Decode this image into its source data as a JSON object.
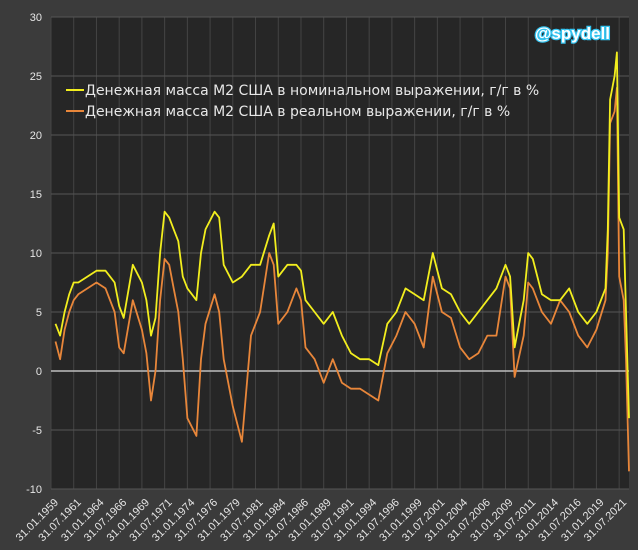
{
  "watermark": "@spydell",
  "chart_data": {
    "type": "line",
    "title": "",
    "xlabel": "",
    "ylabel": "",
    "ylim": [
      -10,
      30
    ],
    "yticks": [
      -10,
      -5,
      0,
      5,
      10,
      15,
      20,
      25,
      30
    ],
    "xlim": [
      "1959-01",
      "2022-08"
    ],
    "xtick_labels": [
      "31.01.1959",
      "31.07.1961",
      "31.01.1964",
      "31.07.1966",
      "31.01.1969",
      "31.07.1971",
      "31.01.1974",
      "31.07.1976",
      "31.01.1979",
      "31.07.1981",
      "31.01.1984",
      "31.07.1986",
      "31.01.1989",
      "31.07.1991",
      "31.01.1994",
      "31.07.1996",
      "31.01.1999",
      "31.07.2001",
      "31.01.2004",
      "31.07.2006",
      "31.01.2009",
      "31.07.2011",
      "31.01.2014",
      "31.07.2016",
      "31.01.2019",
      "31.07.2021"
    ],
    "grid": true,
    "legend_position": "top-left",
    "series": [
      {
        "name": "Денежная масса М2 США в номинальном выражении, г/г в %",
        "color": "#f2ee1e",
        "x": [
          "1959-07",
          "1960-01",
          "1960-07",
          "1961-01",
          "1961-07",
          "1962-01",
          "1963-01",
          "1964-01",
          "1965-01",
          "1966-01",
          "1966-07",
          "1967-01",
          "1968-01",
          "1969-01",
          "1969-07",
          "1970-01",
          "1970-07",
          "1971-01",
          "1971-07",
          "1972-01",
          "1972-07",
          "1973-01",
          "1973-07",
          "1974-01",
          "1975-01",
          "1975-07",
          "1976-01",
          "1977-01",
          "1977-07",
          "1978-01",
          "1979-01",
          "1980-01",
          "1981-01",
          "1982-01",
          "1983-01",
          "1983-07",
          "1984-01",
          "1985-01",
          "1986-01",
          "1986-07",
          "1987-01",
          "1988-01",
          "1989-01",
          "1990-01",
          "1991-01",
          "1992-01",
          "1993-01",
          "1994-01",
          "1995-01",
          "1996-01",
          "1997-01",
          "1998-01",
          "1999-01",
          "2000-01",
          "2001-01",
          "2002-01",
          "2003-01",
          "2004-01",
          "2005-01",
          "2006-01",
          "2007-01",
          "2008-01",
          "2009-01",
          "2009-07",
          "2010-01",
          "2011-01",
          "2011-07",
          "2012-01",
          "2013-01",
          "2014-01",
          "2015-01",
          "2016-01",
          "2017-01",
          "2018-01",
          "2019-01",
          "2020-01",
          "2020-04",
          "2020-07",
          "2021-01",
          "2021-04",
          "2021-07",
          "2022-01",
          "2022-04",
          "2022-08"
        ],
        "y": [
          4,
          3,
          5,
          6.5,
          7.5,
          7.5,
          8,
          8.5,
          8.5,
          7.5,
          5.5,
          4.5,
          9,
          7.5,
          6,
          3,
          4.5,
          10,
          13.5,
          13,
          12,
          11,
          8,
          7,
          6,
          10,
          12,
          13.5,
          13,
          9,
          7.5,
          8,
          9,
          9,
          11.5,
          12.5,
          8,
          9,
          9,
          8.5,
          6,
          5,
          4,
          5,
          3,
          1.5,
          1,
          1,
          0.5,
          4,
          5,
          7,
          6.5,
          6,
          10,
          7,
          6.5,
          5,
          4,
          5,
          6,
          7,
          9,
          8,
          2,
          6,
          10,
          9.5,
          6.5,
          6,
          6,
          7,
          5,
          4,
          5,
          7,
          12,
          23,
          25,
          27,
          13,
          12,
          5,
          -4
        ]
      },
      {
        "name": "Денежная масса М2 США в реальном выражении, г/г в %",
        "color": "#e8863a",
        "x": [
          "1959-07",
          "1960-01",
          "1960-07",
          "1961-01",
          "1961-07",
          "1962-01",
          "1963-01",
          "1964-01",
          "1965-01",
          "1966-01",
          "1966-07",
          "1967-01",
          "1968-01",
          "1969-01",
          "1969-07",
          "1970-01",
          "1970-07",
          "1971-01",
          "1971-07",
          "1972-01",
          "1972-07",
          "1973-01",
          "1973-07",
          "1974-01",
          "1975-01",
          "1975-07",
          "1976-01",
          "1977-01",
          "1977-07",
          "1978-01",
          "1979-01",
          "1980-01",
          "1981-01",
          "1982-01",
          "1983-01",
          "1983-07",
          "1984-01",
          "1985-01",
          "1986-01",
          "1986-07",
          "1987-01",
          "1988-01",
          "1989-01",
          "1990-01",
          "1991-01",
          "1992-01",
          "1993-01",
          "1994-01",
          "1995-01",
          "1996-01",
          "1997-01",
          "1998-01",
          "1999-01",
          "2000-01",
          "2001-01",
          "2002-01",
          "2003-01",
          "2004-01",
          "2005-01",
          "2006-01",
          "2007-01",
          "2008-01",
          "2009-01",
          "2009-07",
          "2010-01",
          "2011-01",
          "2011-07",
          "2012-01",
          "2013-01",
          "2014-01",
          "2015-01",
          "2016-01",
          "2017-01",
          "2018-01",
          "2019-01",
          "2020-01",
          "2020-04",
          "2020-07",
          "2021-01",
          "2021-04",
          "2021-07",
          "2022-01",
          "2022-04",
          "2022-08"
        ],
        "y": [
          2.5,
          1,
          3.5,
          5,
          6,
          6.5,
          7,
          7.5,
          7,
          5,
          2,
          1.5,
          6,
          3.5,
          1.5,
          -2.5,
          0,
          6,
          9.5,
          9,
          7,
          5,
          1,
          -4,
          -5.5,
          1,
          4,
          6.5,
          5,
          1,
          -3,
          -6,
          3,
          5,
          10,
          9,
          4,
          5,
          7,
          6,
          2,
          1,
          -1,
          1,
          -1,
          -1.5,
          -1.5,
          -2,
          -2.5,
          1.5,
          3,
          5,
          4,
          2,
          8,
          5,
          4.5,
          2,
          1,
          1.5,
          3,
          3,
          8,
          7,
          -0.5,
          3,
          7.5,
          7,
          5,
          4,
          6,
          5,
          3,
          2,
          3.5,
          6,
          10,
          21,
          22,
          24,
          8,
          6,
          1,
          -8.5
        ]
      }
    ]
  }
}
